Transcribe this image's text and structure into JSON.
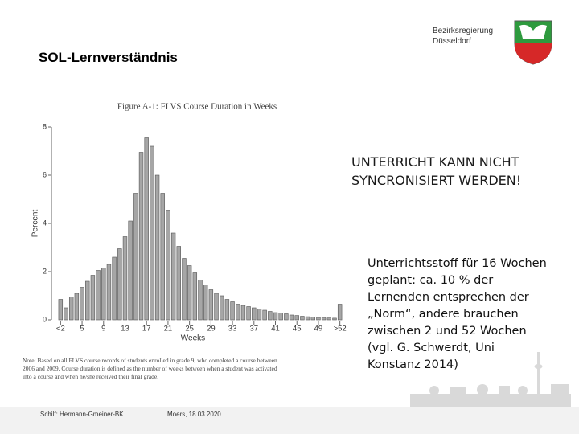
{
  "header": {
    "title": "SOL-Lernverständnis",
    "org_lines": [
      "Bezirksregierung",
      "Düsseldorf"
    ]
  },
  "chart_data": {
    "type": "bar",
    "title": "Figure A-1: FLVS Course Duration in Weeks",
    "x_label": "Weeks",
    "y_label": "Percent",
    "categories": [
      "<2",
      null,
      null,
      null,
      "5",
      null,
      null,
      null,
      "9",
      null,
      null,
      null,
      "13",
      null,
      null,
      null,
      "17",
      null,
      null,
      null,
      "21",
      null,
      null,
      null,
      "25",
      null,
      null,
      null,
      "29",
      null,
      null,
      null,
      "33",
      null,
      null,
      null,
      "37",
      null,
      null,
      null,
      "41",
      null,
      null,
      null,
      "45",
      null,
      null,
      null,
      "49",
      null,
      null,
      null,
      ">52"
    ],
    "values": [
      0.85,
      0.5,
      0.95,
      1.1,
      1.35,
      1.6,
      1.85,
      2.05,
      2.15,
      2.3,
      2.6,
      2.95,
      3.45,
      4.1,
      5.25,
      6.95,
      7.55,
      7.2,
      6.0,
      5.25,
      4.55,
      3.6,
      3.05,
      2.55,
      2.25,
      1.95,
      1.65,
      1.45,
      1.25,
      1.1,
      1.0,
      0.85,
      0.75,
      0.65,
      0.6,
      0.55,
      0.5,
      0.45,
      0.4,
      0.35,
      0.3,
      0.28,
      0.25,
      0.2,
      0.18,
      0.15,
      0.13,
      0.12,
      0.1,
      0.1,
      0.08,
      0.07,
      0.65
    ],
    "color": "#a6a6a6",
    "ylim": [
      0,
      8
    ],
    "yticks": [
      0,
      2,
      4,
      6,
      8
    ],
    "grid": false,
    "note": [
      "Note: Based on all FLVS course records of students enrolled in grade 9, who completed a course between",
      "2006 and 2009. Course duration is defined as the number of weeks between when a student was activated",
      "into a course and when he/she received their final grade."
    ]
  },
  "slide": {
    "headline": [
      "UNTERRICHT KANN NICHT",
      "SYNCRONISIERT WERDEN!"
    ],
    "body": [
      "Unterrichtsstoff für 16 Wochen",
      "geplant: ca. 10 % der",
      "Lernenden entsprechen der",
      "„Norm“, andere brauchen",
      "zwischen 2 und 52 Wochen",
      "(vgl. G. Schwerdt, Uni",
      "Konstanz 2014)"
    ]
  },
  "footer": {
    "left": "Schilf: Hermann-Gmeiner-BK",
    "right": "Moers, 18.03.2020"
  }
}
